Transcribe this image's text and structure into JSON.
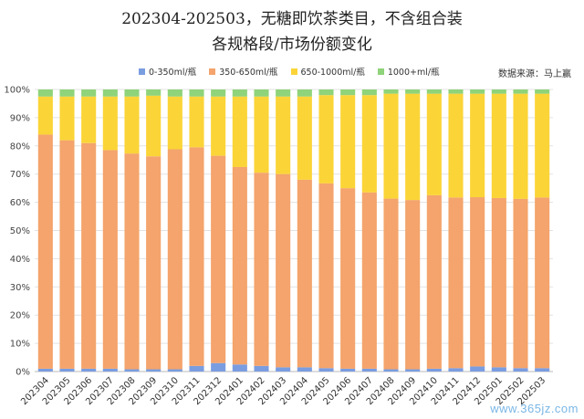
{
  "chart_data": {
    "type": "bar",
    "stacked": true,
    "normalized": true,
    "title": "202304-202503，无糖即饮茶类目，不含组合装",
    "subtitle": "各规格段/市场份额变化",
    "source": "数据来源：马上赢",
    "xlabel": "",
    "ylabel": "",
    "ylim": [
      0,
      100
    ],
    "y_ticks": [
      "0%",
      "10%",
      "20%",
      "30%",
      "40%",
      "50%",
      "60%",
      "70%",
      "80%",
      "90%",
      "100%"
    ],
    "grid": true,
    "legend_position": "top",
    "categories": [
      "202304",
      "202305",
      "202306",
      "202307",
      "202308",
      "202309",
      "202310",
      "202311",
      "202312",
      "202401",
      "202402",
      "202403",
      "202404",
      "202405",
      "202406",
      "202407",
      "202408",
      "202409",
      "202410",
      "202411",
      "202412",
      "202501",
      "202502",
      "202503"
    ],
    "series": [
      {
        "name": "0-350ml/瓶",
        "color": "#7a9de0",
        "values": [
          1.0,
          1.0,
          1.0,
          1.0,
          0.8,
          0.8,
          0.8,
          2.0,
          3.0,
          2.5,
          2.0,
          1.5,
          1.5,
          1.2,
          1.0,
          1.0,
          0.8,
          0.8,
          1.0,
          1.2,
          1.8,
          1.5,
          1.2,
          1.2
        ]
      },
      {
        "name": "350-650ml/瓶",
        "color": "#f4a46c",
        "values": [
          83.0,
          81.0,
          80.0,
          77.5,
          76.5,
          75.5,
          78.0,
          77.5,
          73.5,
          70.0,
          68.5,
          68.5,
          66.5,
          65.5,
          64.0,
          62.5,
          60.5,
          60.0,
          61.5,
          60.5,
          60.0,
          60.0,
          60.0,
          60.5
        ]
      },
      {
        "name": "650-1000ml/瓶",
        "color": "#fbd437",
        "values": [
          13.5,
          15.5,
          16.5,
          19.0,
          20.2,
          21.5,
          18.7,
          18.0,
          21.0,
          25.0,
          27.0,
          27.5,
          29.5,
          31.3,
          33.0,
          34.5,
          37.2,
          37.7,
          36.0,
          36.8,
          36.7,
          37.0,
          37.3,
          36.8
        ]
      },
      {
        "name": "1000+ml/瓶",
        "color": "#8fd37a",
        "values": [
          2.5,
          2.5,
          2.5,
          2.5,
          2.5,
          2.2,
          2.5,
          2.5,
          2.5,
          2.5,
          2.5,
          2.5,
          2.5,
          2.0,
          2.0,
          2.0,
          1.5,
          1.5,
          1.5,
          1.5,
          1.5,
          1.5,
          1.5,
          1.5
        ]
      }
    ]
  },
  "watermark": "www.365jz.com"
}
